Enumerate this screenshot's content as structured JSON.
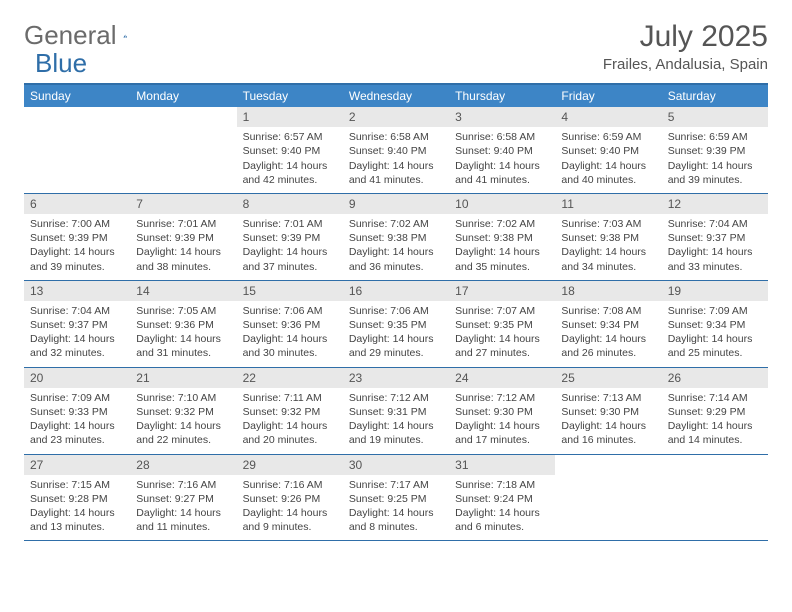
{
  "brand": {
    "part1": "General",
    "part2": "Blue"
  },
  "title": "July 2025",
  "location": "Frailes, Andalusia, Spain",
  "colors": {
    "header_bg": "#3d85c6",
    "header_border": "#2f6ea8",
    "daynum_bg": "#e8e8e8",
    "text": "#444444",
    "title_text": "#555555"
  },
  "weekdays": [
    "Sunday",
    "Monday",
    "Tuesday",
    "Wednesday",
    "Thursday",
    "Friday",
    "Saturday"
  ],
  "weeks": [
    [
      {
        "n": "",
        "sunrise": "",
        "sunset": "",
        "daylight": ""
      },
      {
        "n": "",
        "sunrise": "",
        "sunset": "",
        "daylight": ""
      },
      {
        "n": "1",
        "sunrise": "Sunrise: 6:57 AM",
        "sunset": "Sunset: 9:40 PM",
        "daylight": "Daylight: 14 hours and 42 minutes."
      },
      {
        "n": "2",
        "sunrise": "Sunrise: 6:58 AM",
        "sunset": "Sunset: 9:40 PM",
        "daylight": "Daylight: 14 hours and 41 minutes."
      },
      {
        "n": "3",
        "sunrise": "Sunrise: 6:58 AM",
        "sunset": "Sunset: 9:40 PM",
        "daylight": "Daylight: 14 hours and 41 minutes."
      },
      {
        "n": "4",
        "sunrise": "Sunrise: 6:59 AM",
        "sunset": "Sunset: 9:40 PM",
        "daylight": "Daylight: 14 hours and 40 minutes."
      },
      {
        "n": "5",
        "sunrise": "Sunrise: 6:59 AM",
        "sunset": "Sunset: 9:39 PM",
        "daylight": "Daylight: 14 hours and 39 minutes."
      }
    ],
    [
      {
        "n": "6",
        "sunrise": "Sunrise: 7:00 AM",
        "sunset": "Sunset: 9:39 PM",
        "daylight": "Daylight: 14 hours and 39 minutes."
      },
      {
        "n": "7",
        "sunrise": "Sunrise: 7:01 AM",
        "sunset": "Sunset: 9:39 PM",
        "daylight": "Daylight: 14 hours and 38 minutes."
      },
      {
        "n": "8",
        "sunrise": "Sunrise: 7:01 AM",
        "sunset": "Sunset: 9:39 PM",
        "daylight": "Daylight: 14 hours and 37 minutes."
      },
      {
        "n": "9",
        "sunrise": "Sunrise: 7:02 AM",
        "sunset": "Sunset: 9:38 PM",
        "daylight": "Daylight: 14 hours and 36 minutes."
      },
      {
        "n": "10",
        "sunrise": "Sunrise: 7:02 AM",
        "sunset": "Sunset: 9:38 PM",
        "daylight": "Daylight: 14 hours and 35 minutes."
      },
      {
        "n": "11",
        "sunrise": "Sunrise: 7:03 AM",
        "sunset": "Sunset: 9:38 PM",
        "daylight": "Daylight: 14 hours and 34 minutes."
      },
      {
        "n": "12",
        "sunrise": "Sunrise: 7:04 AM",
        "sunset": "Sunset: 9:37 PM",
        "daylight": "Daylight: 14 hours and 33 minutes."
      }
    ],
    [
      {
        "n": "13",
        "sunrise": "Sunrise: 7:04 AM",
        "sunset": "Sunset: 9:37 PM",
        "daylight": "Daylight: 14 hours and 32 minutes."
      },
      {
        "n": "14",
        "sunrise": "Sunrise: 7:05 AM",
        "sunset": "Sunset: 9:36 PM",
        "daylight": "Daylight: 14 hours and 31 minutes."
      },
      {
        "n": "15",
        "sunrise": "Sunrise: 7:06 AM",
        "sunset": "Sunset: 9:36 PM",
        "daylight": "Daylight: 14 hours and 30 minutes."
      },
      {
        "n": "16",
        "sunrise": "Sunrise: 7:06 AM",
        "sunset": "Sunset: 9:35 PM",
        "daylight": "Daylight: 14 hours and 29 minutes."
      },
      {
        "n": "17",
        "sunrise": "Sunrise: 7:07 AM",
        "sunset": "Sunset: 9:35 PM",
        "daylight": "Daylight: 14 hours and 27 minutes."
      },
      {
        "n": "18",
        "sunrise": "Sunrise: 7:08 AM",
        "sunset": "Sunset: 9:34 PM",
        "daylight": "Daylight: 14 hours and 26 minutes."
      },
      {
        "n": "19",
        "sunrise": "Sunrise: 7:09 AM",
        "sunset": "Sunset: 9:34 PM",
        "daylight": "Daylight: 14 hours and 25 minutes."
      }
    ],
    [
      {
        "n": "20",
        "sunrise": "Sunrise: 7:09 AM",
        "sunset": "Sunset: 9:33 PM",
        "daylight": "Daylight: 14 hours and 23 minutes."
      },
      {
        "n": "21",
        "sunrise": "Sunrise: 7:10 AM",
        "sunset": "Sunset: 9:32 PM",
        "daylight": "Daylight: 14 hours and 22 minutes."
      },
      {
        "n": "22",
        "sunrise": "Sunrise: 7:11 AM",
        "sunset": "Sunset: 9:32 PM",
        "daylight": "Daylight: 14 hours and 20 minutes."
      },
      {
        "n": "23",
        "sunrise": "Sunrise: 7:12 AM",
        "sunset": "Sunset: 9:31 PM",
        "daylight": "Daylight: 14 hours and 19 minutes."
      },
      {
        "n": "24",
        "sunrise": "Sunrise: 7:12 AM",
        "sunset": "Sunset: 9:30 PM",
        "daylight": "Daylight: 14 hours and 17 minutes."
      },
      {
        "n": "25",
        "sunrise": "Sunrise: 7:13 AM",
        "sunset": "Sunset: 9:30 PM",
        "daylight": "Daylight: 14 hours and 16 minutes."
      },
      {
        "n": "26",
        "sunrise": "Sunrise: 7:14 AM",
        "sunset": "Sunset: 9:29 PM",
        "daylight": "Daylight: 14 hours and 14 minutes."
      }
    ],
    [
      {
        "n": "27",
        "sunrise": "Sunrise: 7:15 AM",
        "sunset": "Sunset: 9:28 PM",
        "daylight": "Daylight: 14 hours and 13 minutes."
      },
      {
        "n": "28",
        "sunrise": "Sunrise: 7:16 AM",
        "sunset": "Sunset: 9:27 PM",
        "daylight": "Daylight: 14 hours and 11 minutes."
      },
      {
        "n": "29",
        "sunrise": "Sunrise: 7:16 AM",
        "sunset": "Sunset: 9:26 PM",
        "daylight": "Daylight: 14 hours and 9 minutes."
      },
      {
        "n": "30",
        "sunrise": "Sunrise: 7:17 AM",
        "sunset": "Sunset: 9:25 PM",
        "daylight": "Daylight: 14 hours and 8 minutes."
      },
      {
        "n": "31",
        "sunrise": "Sunrise: 7:18 AM",
        "sunset": "Sunset: 9:24 PM",
        "daylight": "Daylight: 14 hours and 6 minutes."
      },
      {
        "n": "",
        "sunrise": "",
        "sunset": "",
        "daylight": ""
      },
      {
        "n": "",
        "sunrise": "",
        "sunset": "",
        "daylight": ""
      }
    ]
  ]
}
